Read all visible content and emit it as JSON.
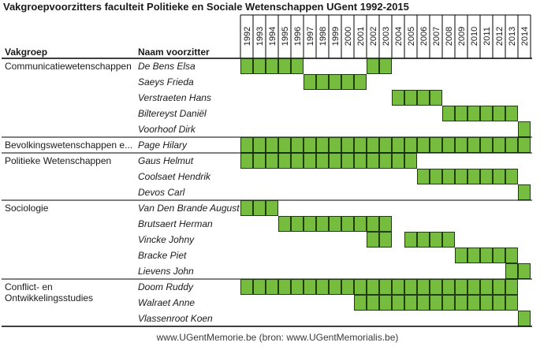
{
  "title": "Vakgroepvoorzitters faculteit Politieke en Sociale Wetenschappen UGent 1992-2015",
  "footer": "www.UGentMemorie.be (bron: www.UGentMemorialis.be)",
  "colors": {
    "bar": "#76bc3e",
    "bar_border": "#1f3d10",
    "line": "#000000",
    "text": "#1a1a1a"
  },
  "chart_data": {
    "type": "table",
    "columns": [
      "Vakgroep",
      "Naam voorzitter"
    ],
    "years": [
      "1992",
      "1993",
      "1994",
      "1995",
      "1996",
      "1997",
      "1998",
      "1999",
      "2000",
      "2001",
      "2002",
      "2003",
      "2004",
      "2005",
      "2006",
      "2007",
      "2008",
      "2009",
      "2010",
      "2011",
      "2012",
      "2013",
      "2014"
    ],
    "groups": [
      {
        "name": "Communicatiewetenschappen",
        "rows": [
          {
            "name": "De Bens Elsa",
            "years": [
              "1992",
              "1993",
              "1994",
              "1995",
              "1996",
              "2002",
              "2003"
            ]
          },
          {
            "name": "Saeys Frieda",
            "years": [
              "1997",
              "1998",
              "1999",
              "2000",
              "2001"
            ]
          },
          {
            "name": "Verstraeten Hans",
            "years": [
              "2004",
              "2005",
              "2006",
              "2007"
            ]
          },
          {
            "name": "Biltereyst Daniël",
            "years": [
              "2008",
              "2009",
              "2010",
              "2011",
              "2012",
              "2013"
            ]
          },
          {
            "name": "Voorhoof Dirk",
            "years": [
              "2014"
            ]
          }
        ]
      },
      {
        "name": "Bevolkingswetenschappen e...",
        "rows": [
          {
            "name": "Page Hilary",
            "years": [
              "1992",
              "1993",
              "1994",
              "1995",
              "1996",
              "1997",
              "1998",
              "1999",
              "2000",
              "2001",
              "2002",
              "2003",
              "2004",
              "2005",
              "2006",
              "2007",
              "2008",
              "2009",
              "2010",
              "2011",
              "2012",
              "2013",
              "2014"
            ]
          }
        ]
      },
      {
        "name": "Politieke Wetenschappen",
        "rows": [
          {
            "name": "Gaus Helmut",
            "years": [
              "1992",
              "1993",
              "1994",
              "1995",
              "1996",
              "1997",
              "1998",
              "1999",
              "2000",
              "2001",
              "2002",
              "2003",
              "2004",
              "2005"
            ]
          },
          {
            "name": "Coolsaet Hendrik",
            "years": [
              "2006",
              "2007",
              "2008",
              "2009",
              "2010",
              "2011",
              "2012",
              "2013"
            ]
          },
          {
            "name": "Devos Carl",
            "years": [
              "2014"
            ]
          }
        ]
      },
      {
        "name": "Sociologie",
        "rows": [
          {
            "name": "Van Den Brande August",
            "years": [
              "1992",
              "1993",
              "1994"
            ]
          },
          {
            "name": "Brutsaert Herman",
            "years": [
              "1995",
              "1996",
              "1997",
              "1998",
              "1999",
              "2000",
              "2001",
              "2002",
              "2003"
            ]
          },
          {
            "name": "Vincke Johny",
            "years": [
              "2002",
              "2003",
              "2005",
              "2006",
              "2007",
              "2008"
            ]
          },
          {
            "name": "Bracke Piet",
            "years": [
              "2009",
              "2010",
              "2011",
              "2012",
              "2013"
            ]
          },
          {
            "name": "Lievens John",
            "years": [
              "2013",
              "2014"
            ]
          }
        ]
      },
      {
        "name": "Conflict- en Ontwikkelingsstudies",
        "name_lines": [
          "Conflict- en",
          "Ontwikkelingsstudies"
        ],
        "rows": [
          {
            "name": "Doom Ruddy",
            "years": [
              "1992",
              "1993",
              "1994",
              "1995",
              "1996",
              "1997",
              "1998",
              "1999",
              "2000",
              "2001",
              "2002",
              "2003",
              "2004",
              "2005",
              "2006",
              "2007",
              "2008",
              "2009",
              "2010",
              "2011",
              "2012",
              "2013"
            ]
          },
          {
            "name": "Walraet Anne",
            "years": [
              "2001",
              "2002",
              "2003",
              "2004",
              "2005",
              "2006",
              "2007",
              "2008",
              "2009",
              "2010",
              "2011",
              "2012",
              "2013"
            ]
          },
          {
            "name": "Vlassenroot Koen",
            "years": [
              "2014"
            ]
          }
        ]
      }
    ]
  }
}
